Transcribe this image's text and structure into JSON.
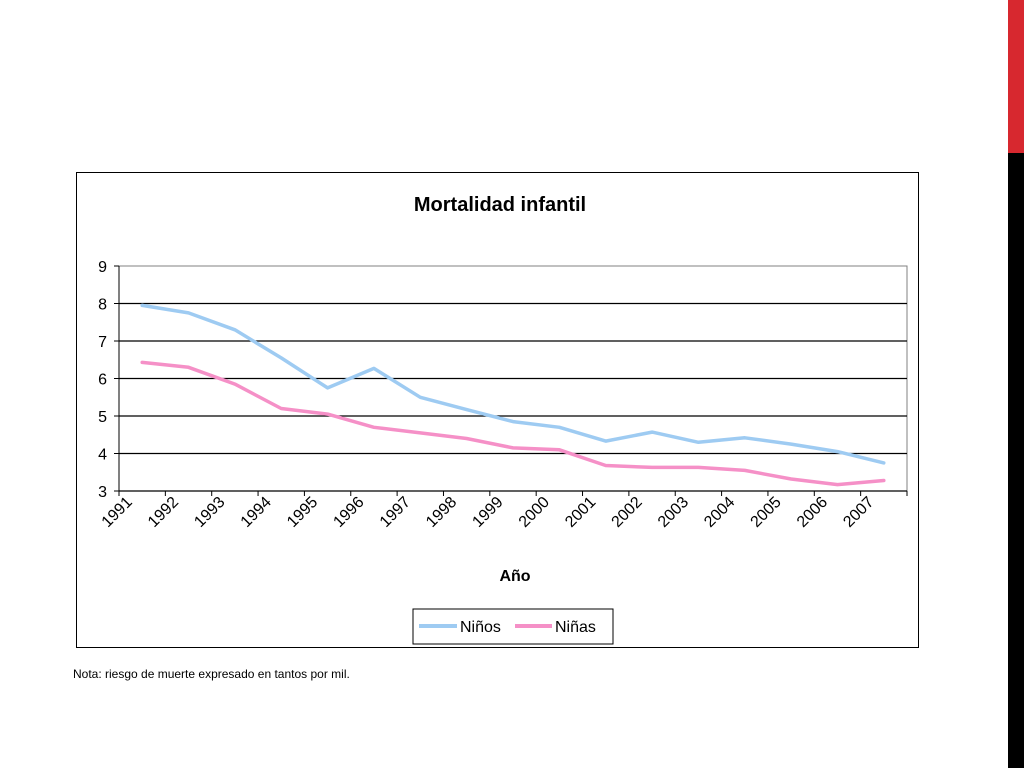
{
  "colors": {
    "ninos": "#9ecbf2",
    "ninas": "#f590c7",
    "accent_red": "#d7282f",
    "accent_black": "#000000"
  },
  "chart_data": {
    "type": "line",
    "title": "Mortalidad infantil",
    "xlabel": "Año",
    "ylabel": "",
    "x": [
      "1991",
      "1992",
      "1993",
      "1994",
      "1995",
      "1996",
      "1997",
      "1998",
      "1999",
      "2000",
      "2001",
      "2002",
      "2003",
      "2004",
      "2005",
      "2006",
      "2007"
    ],
    "ylim": [
      3,
      9
    ],
    "yticks": [
      3,
      4,
      5,
      6,
      7,
      8,
      9
    ],
    "grid": true,
    "legend": "bottom",
    "series": [
      {
        "name": "Niños",
        "color": "#9ecbf2",
        "values": [
          7.95,
          7.75,
          7.3,
          6.55,
          5.75,
          6.27,
          5.5,
          5.17,
          4.85,
          4.7,
          4.33,
          4.57,
          4.3,
          4.42,
          4.25,
          4.05,
          3.75
        ]
      },
      {
        "name": "Niñas",
        "color": "#f590c7",
        "values": [
          6.43,
          6.3,
          5.85,
          5.2,
          5.05,
          4.7,
          4.55,
          4.4,
          4.15,
          4.1,
          3.68,
          3.63,
          3.63,
          3.55,
          3.32,
          3.17,
          3.28
        ]
      }
    ]
  },
  "note": "Nota: riesgo de muerte expresado en tantos por mil."
}
